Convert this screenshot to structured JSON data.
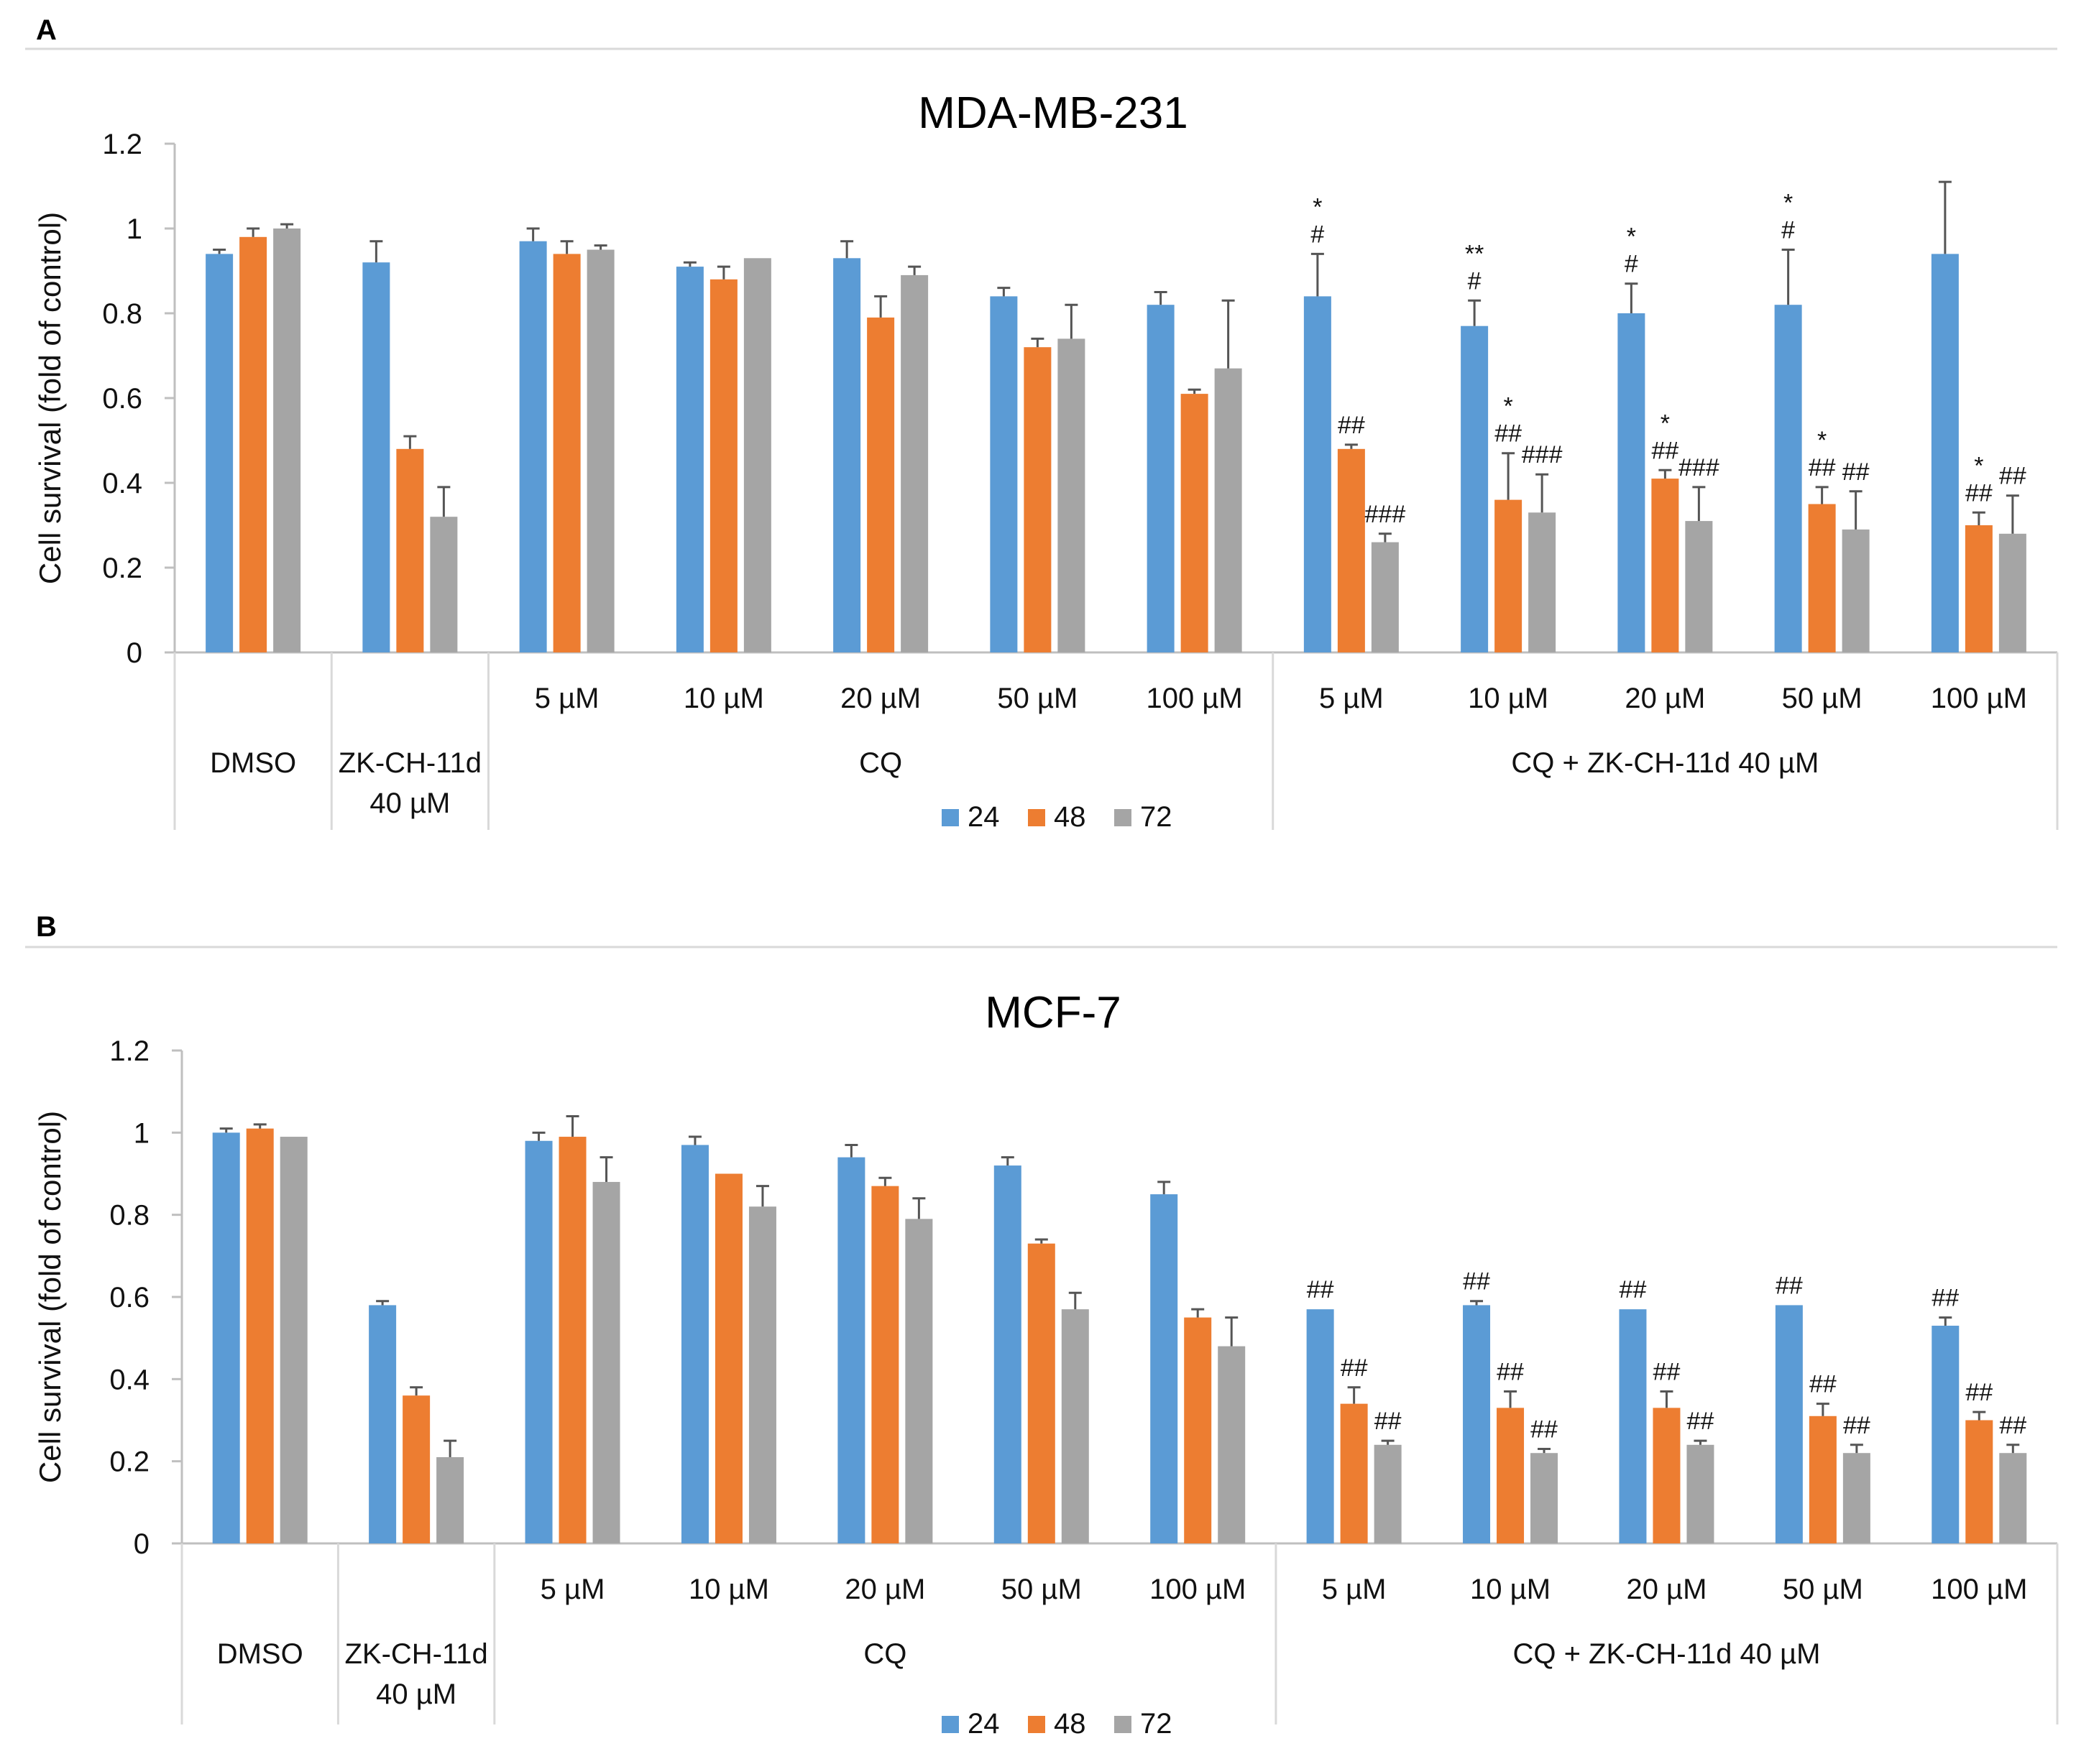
{
  "colors": {
    "24": "#5b9bd5",
    "48": "#ed7d31",
    "72": "#a5a5a5"
  },
  "chart_data": [
    {
      "type": "bar",
      "panel": "A",
      "title": "MDA-MB-231",
      "ylabel": "Cell survival (fold of control)",
      "ylim": [
        0,
        1.2
      ],
      "yticks": [
        "0",
        "0.2",
        "0.4",
        "0.6",
        "0.8",
        "1",
        "1.2"
      ],
      "groups": [
        {
          "label": "DMSO",
          "sublabels": [
            ""
          ]
        },
        {
          "label": "ZK-CH-11d\n40 µM",
          "sublabels": [
            ""
          ]
        },
        {
          "label": "CQ",
          "sublabels": [
            "5 µM",
            "10 µM",
            "20 µM",
            "50 µM",
            "100 µM"
          ]
        },
        {
          "label": "CQ + ZK-CH-11d 40 µM",
          "sublabels": [
            "5 µM",
            "10 µM",
            "20 µM",
            "50 µM",
            "100 µM"
          ]
        }
      ],
      "series": [
        {
          "name": "24",
          "values": [
            0.94,
            0.92,
            0.97,
            0.91,
            0.93,
            0.84,
            0.82,
            0.84,
            0.77,
            0.8,
            0.82,
            0.94
          ],
          "errors": [
            0.01,
            0.05,
            0.03,
            0.01,
            0.04,
            0.02,
            0.03,
            0.1,
            0.06,
            0.07,
            0.13,
            0.17
          ]
        },
        {
          "name": "48",
          "values": [
            0.98,
            0.48,
            0.94,
            0.88,
            0.79,
            0.72,
            0.61,
            0.48,
            0.36,
            0.41,
            0.35,
            0.3
          ],
          "errors": [
            0.02,
            0.03,
            0.03,
            0.03,
            0.05,
            0.02,
            0.01,
            0.01,
            0.11,
            0.02,
            0.04,
            0.03
          ]
        },
        {
          "name": "72",
          "values": [
            1.0,
            0.32,
            0.95,
            0.93,
            0.89,
            0.74,
            0.67,
            0.26,
            0.33,
            0.31,
            0.29,
            0.28
          ],
          "errors": [
            0.01,
            0.07,
            0.01,
            0.0,
            0.02,
            0.08,
            0.16,
            0.02,
            0.09,
            0.08,
            0.09,
            0.09
          ]
        }
      ],
      "annotations": [
        {
          "cat": 7,
          "series": "24",
          "lines": [
            "*",
            "#"
          ]
        },
        {
          "cat": 7,
          "series": "48",
          "lines": [
            "##"
          ]
        },
        {
          "cat": 7,
          "series": "72",
          "lines": [
            "###"
          ]
        },
        {
          "cat": 8,
          "series": "24",
          "lines": [
            "**",
            "#"
          ]
        },
        {
          "cat": 8,
          "series": "48",
          "lines": [
            "*",
            "##"
          ]
        },
        {
          "cat": 8,
          "series": "72",
          "lines": [
            "###"
          ]
        },
        {
          "cat": 9,
          "series": "24",
          "lines": [
            "*",
            "#"
          ]
        },
        {
          "cat": 9,
          "series": "48",
          "lines": [
            "*",
            "##"
          ]
        },
        {
          "cat": 9,
          "series": "72",
          "lines": [
            "###"
          ]
        },
        {
          "cat": 10,
          "series": "24",
          "lines": [
            "*",
            "#"
          ]
        },
        {
          "cat": 10,
          "series": "48",
          "lines": [
            "*",
            "##"
          ]
        },
        {
          "cat": 10,
          "series": "72",
          "lines": [
            "##"
          ]
        },
        {
          "cat": 11,
          "series": "48",
          "lines": [
            "*",
            "##"
          ]
        },
        {
          "cat": 11,
          "series": "72",
          "lines": [
            "##"
          ]
        }
      ],
      "legend": [
        "24",
        "48",
        "72"
      ],
      "legend_position": "bottom"
    },
    {
      "type": "bar",
      "panel": "B",
      "title": "MCF-7",
      "ylabel": "Cell survival (fold of control)",
      "ylim": [
        0,
        1.2
      ],
      "yticks": [
        "0",
        "0.2",
        "0.4",
        "0.6",
        "0.8",
        "1",
        "1.2"
      ],
      "groups": [
        {
          "label": "DMSO",
          "sublabels": [
            ""
          ]
        },
        {
          "label": "ZK-CH-11d\n40 µM",
          "sublabels": [
            ""
          ]
        },
        {
          "label": "CQ",
          "sublabels": [
            "5 µM",
            "10 µM",
            "20 µM",
            "50 µM",
            "100 µM"
          ]
        },
        {
          "label": "CQ + ZK-CH-11d 40 µM",
          "sublabels": [
            "5 µM",
            "10 µM",
            "20 µM",
            "50 µM",
            "100 µM"
          ]
        }
      ],
      "series": [
        {
          "name": "24",
          "values": [
            1.0,
            0.58,
            0.98,
            0.97,
            0.94,
            0.92,
            0.85,
            0.57,
            0.58,
            0.57,
            0.58,
            0.53
          ],
          "errors": [
            0.01,
            0.01,
            0.02,
            0.02,
            0.03,
            0.02,
            0.03,
            0.0,
            0.01,
            0.0,
            0.0,
            0.02
          ]
        },
        {
          "name": "48",
          "values": [
            1.01,
            0.36,
            0.99,
            0.9,
            0.87,
            0.73,
            0.55,
            0.34,
            0.33,
            0.33,
            0.31,
            0.3
          ],
          "errors": [
            0.01,
            0.02,
            0.05,
            0.0,
            0.02,
            0.01,
            0.02,
            0.04,
            0.04,
            0.04,
            0.03,
            0.02
          ]
        },
        {
          "name": "72",
          "values": [
            0.99,
            0.21,
            0.88,
            0.82,
            0.79,
            0.57,
            0.48,
            0.24,
            0.22,
            0.24,
            0.22,
            0.22
          ],
          "errors": [
            0.0,
            0.04,
            0.06,
            0.05,
            0.05,
            0.04,
            0.07,
            0.01,
            0.01,
            0.01,
            0.02,
            0.02
          ]
        }
      ],
      "annotations": [
        {
          "cat": 7,
          "series": "24",
          "lines": [
            "##"
          ]
        },
        {
          "cat": 7,
          "series": "48",
          "lines": [
            "##"
          ]
        },
        {
          "cat": 7,
          "series": "72",
          "lines": [
            "##"
          ]
        },
        {
          "cat": 8,
          "series": "24",
          "lines": [
            "##"
          ]
        },
        {
          "cat": 8,
          "series": "48",
          "lines": [
            "##"
          ]
        },
        {
          "cat": 8,
          "series": "72",
          "lines": [
            "##"
          ]
        },
        {
          "cat": 9,
          "series": "24",
          "lines": [
            "##"
          ]
        },
        {
          "cat": 9,
          "series": "48",
          "lines": [
            "##"
          ]
        },
        {
          "cat": 9,
          "series": "72",
          "lines": [
            "##"
          ]
        },
        {
          "cat": 10,
          "series": "24",
          "lines": [
            "##"
          ]
        },
        {
          "cat": 10,
          "series": "48",
          "lines": [
            "##"
          ]
        },
        {
          "cat": 10,
          "series": "72",
          "lines": [
            "##"
          ]
        },
        {
          "cat": 11,
          "series": "24",
          "lines": [
            "##"
          ]
        },
        {
          "cat": 11,
          "series": "48",
          "lines": [
            "##"
          ]
        },
        {
          "cat": 11,
          "series": "72",
          "lines": [
            "##"
          ]
        }
      ],
      "legend": [
        "24",
        "48",
        "72"
      ],
      "legend_position": "bottom"
    }
  ]
}
